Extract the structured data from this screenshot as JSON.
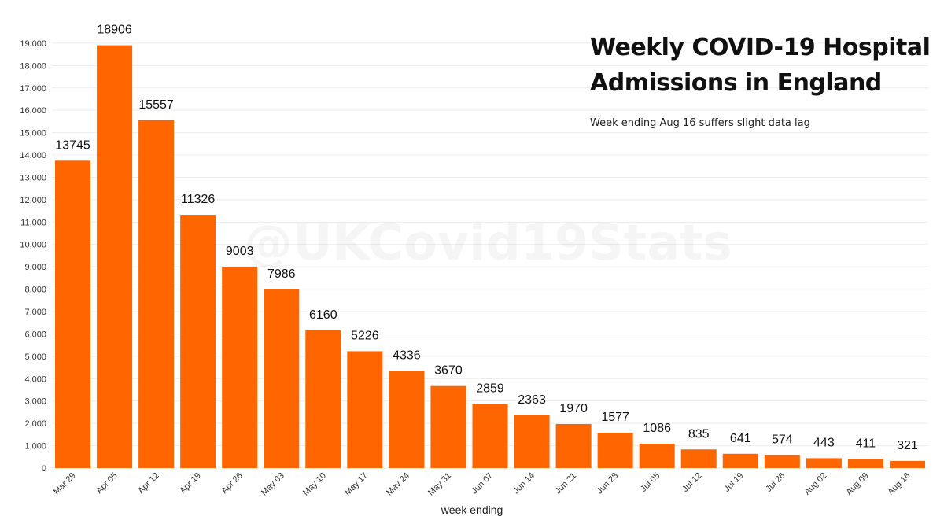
{
  "chart_data": {
    "type": "bar",
    "title": "Weekly COVID-19 Hospital Admissions in England",
    "subtitle": "Week ending Aug 16 suffers slight data lag",
    "watermark": "@UKCovid19Stats",
    "xlabel": "week ending",
    "ylabel": "",
    "ylim": [
      0,
      19700
    ],
    "yticks": [
      0,
      1000,
      2000,
      3000,
      4000,
      5000,
      6000,
      7000,
      8000,
      9000,
      10000,
      11000,
      12000,
      13000,
      14000,
      15000,
      16000,
      17000,
      18000,
      19000
    ],
    "ytick_labels": [
      "0",
      "1,000",
      "2,000",
      "3,000",
      "4,000",
      "5,000",
      "6,000",
      "7,000",
      "8,000",
      "9,000",
      "10,000",
      "11,000",
      "12,000",
      "13,000",
      "14,000",
      "15,000",
      "16,000",
      "17,000",
      "18,000",
      "19,000"
    ],
    "categories": [
      "Mar 29",
      "Apr 05",
      "Apr 12",
      "Apr 19",
      "Apr 26",
      "May 03",
      "May 10",
      "May 17",
      "May 24",
      "May 31",
      "Jun 07",
      "Jun 14",
      "Jun 21",
      "Jun 28",
      "Jul 05",
      "Jul 12",
      "Jul 19",
      "Jul 26",
      "Aug 02",
      "Aug 09",
      "Aug 16"
    ],
    "values": [
      13745,
      18906,
      15557,
      11326,
      9003,
      7986,
      6160,
      5226,
      4336,
      3670,
      2859,
      2363,
      1970,
      1577,
      1086,
      835,
      641,
      574,
      443,
      411,
      321
    ],
    "data_labels": [
      "13745",
      "18906",
      "15557",
      "11326",
      "9003",
      "7986",
      "6160",
      "5226",
      "4336",
      "3670",
      "2859",
      "2363",
      "1970",
      "1577",
      "1086",
      "835",
      "641",
      "574",
      "443",
      "411",
      "321"
    ],
    "bar_color": "#ff6600",
    "grid": true,
    "legend": "none"
  }
}
